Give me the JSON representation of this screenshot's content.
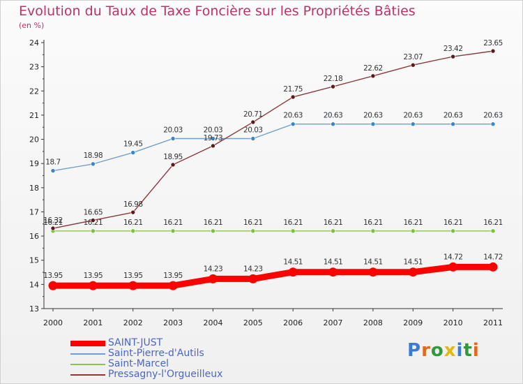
{
  "header": {
    "title": "Evolution du Taux de Taxe Foncière sur les Propriétés Bâties",
    "subtitle": "(en %)"
  },
  "brand": {
    "text": "Proxiti",
    "colors": [
      "#3a7bd5",
      "#e06a1c",
      "#2e9a3a",
      "#e0b81c",
      "#3a7bd5",
      "#2e9a3a",
      "#e06a1c"
    ]
  },
  "chart_data": {
    "type": "line",
    "title": "Evolution du Taux de Taxe Foncière sur les Propriétés Bâties",
    "ylabel": "(en %)",
    "xlabel": "",
    "categories": [
      "2000",
      "2001",
      "2002",
      "2003",
      "2004",
      "2005",
      "2006",
      "2007",
      "2008",
      "2009",
      "2010",
      "2011"
    ],
    "ylim": [
      13,
      24
    ],
    "yticks": [
      13,
      14,
      15,
      16,
      17,
      18,
      19,
      20,
      21,
      22,
      23,
      24
    ],
    "grid": false,
    "legend_position": "bottom-left",
    "series": [
      {
        "name": "Saint-Marcel",
        "color": "#8cc63f",
        "marker_color": "#7ac142",
        "values": [
          16.21,
          16.21,
          16.21,
          16.21,
          16.21,
          16.21,
          16.21,
          16.21,
          16.21,
          16.21,
          16.21,
          16.21
        ],
        "labels": [
          "16.21",
          "16.21",
          "16.21",
          "16.21",
          "16.21",
          "16.21",
          "16.21",
          "16.21",
          "16.21",
          "16.21",
          "16.21",
          "16.21"
        ]
      },
      {
        "name": "Saint-Pierre-d'Autils",
        "color": "#6f9fd0",
        "marker_color": "#3b86c8",
        "values": [
          18.7,
          18.98,
          19.45,
          20.03,
          20.03,
          20.03,
          20.63,
          20.63,
          20.63,
          20.63,
          20.63,
          20.63
        ],
        "labels": [
          "18.7",
          "18.98",
          "19.45",
          "20.03",
          "20.03",
          "20.03",
          "20.63",
          "20.63",
          "20.63",
          "20.63",
          "20.63",
          "20.63"
        ]
      },
      {
        "name": "Pressagny-l'Orgueilleux",
        "color": "#8b3a3a",
        "marker_color": "#5a1a1a",
        "values": [
          16.32,
          16.65,
          16.98,
          18.95,
          19.73,
          20.71,
          21.75,
          22.18,
          22.62,
          23.07,
          23.42,
          23.65
        ],
        "labels": [
          "16.32",
          "16.65",
          "16.98",
          "18.95",
          "19.73",
          "20.71",
          "21.75",
          "22.18",
          "22.62",
          "23.07",
          "23.42",
          "23.65"
        ]
      },
      {
        "name": "SAINT-JUST",
        "color": "#ff0000",
        "marker_color": "#ff0000",
        "values": [
          13.95,
          13.95,
          13.95,
          13.95,
          14.23,
          14.23,
          14.51,
          14.51,
          14.51,
          14.51,
          14.72,
          14.72
        ],
        "labels": [
          "13.95",
          "13.95",
          "13.95",
          "13.95",
          "14.23",
          "14.23",
          "14.51",
          "14.51",
          "14.51",
          "14.51",
          "14.72",
          "14.72"
        ]
      }
    ],
    "legend": [
      {
        "name": "SAINT-JUST",
        "color": "#ff0000"
      },
      {
        "name": "Saint-Pierre-d'Autils",
        "color": "#6f9fd0"
      },
      {
        "name": "Saint-Marcel",
        "color": "#8cc63f"
      },
      {
        "name": "Pressagny-l'Orgueilleux",
        "color": "#8b3a3a"
      }
    ]
  }
}
